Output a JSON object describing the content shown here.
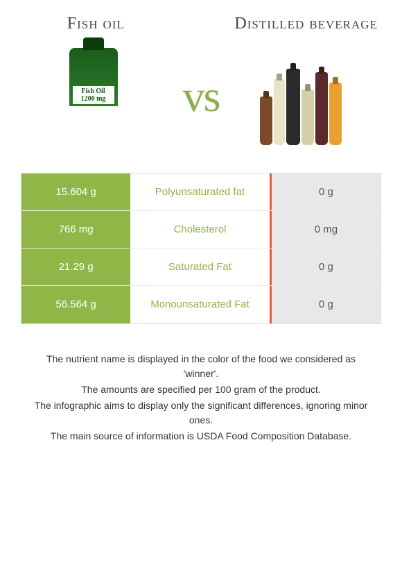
{
  "header": {
    "left_title": "Fish oil",
    "right_title": "Distilled beverage",
    "vs_label": "vs"
  },
  "product_left": {
    "bottle_label": "Fish Oil 1200 mg"
  },
  "colors": {
    "winner_green_bg": "#8fb646",
    "winner_green_text": "#8fb646",
    "loser_gray_bg": "#e8e8e8",
    "loser_accent": "#e85a3a",
    "vs_color": "#88b04b",
    "title_color": "#444444"
  },
  "table": {
    "type": "comparison-table",
    "rows": [
      {
        "left": "15.604 g",
        "label": "Polyunsaturated fat",
        "right": "0 g"
      },
      {
        "left": "766 mg",
        "label": "Cholesterol",
        "right": "0 mg"
      },
      {
        "left": "21.29 g",
        "label": "Saturated Fat",
        "right": "0 g"
      },
      {
        "left": "56.564 g",
        "label": "Monounsaturated Fat",
        "right": "0 g"
      }
    ]
  },
  "footer": {
    "line1": "The nutrient name is displayed in the color of the food we considered as 'winner'.",
    "line2": "The amounts are specified per 100 gram of the product.",
    "line3": "The infographic aims to display only the significant differences, ignoring minor ones.",
    "line4": "The main source of information is USDA Food Composition Database."
  }
}
